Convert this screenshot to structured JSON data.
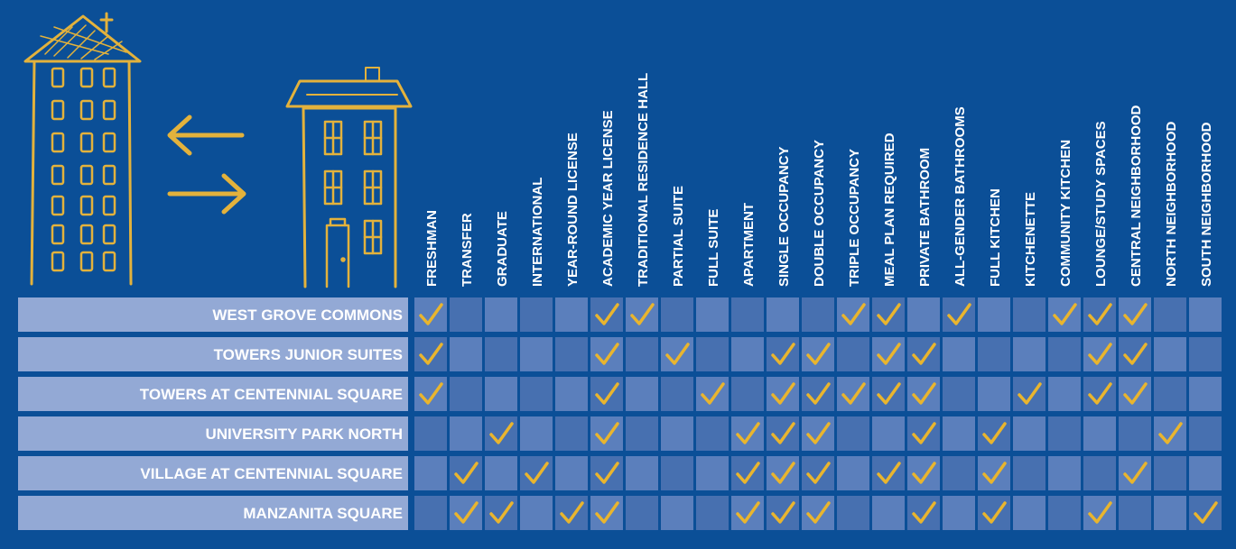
{
  "table": {
    "columns": [
      "FRESHMAN",
      "TRANSFER",
      "GRADUATE",
      "INTERNATIONAL",
      "YEAR-ROUND LICENSE",
      "ACADEMIC YEAR LICENSE",
      "TRADITIONAL RESIDENCE HALL",
      "PARTIAL SUITE",
      "FULL SUITE",
      "APARTMENT",
      "SINGLE OCCUPANCY",
      "DOUBLE OCCUPANCY",
      "TRIPLE OCCUPANCY",
      "MEAL PLAN REQUIRED",
      "PRIVATE BATHROOM",
      "ALL-GENDER BATHROOMS",
      "FULL KITCHEN",
      "KITCHENETTE",
      "COMMUNITY KITCHEN",
      "LOUNGE/STUDY SPACES",
      "CENTRAL NEIGHBORHOOD",
      "NORTH NEIGHBORHOOD",
      "SOUTH NEIGHBORHOOD"
    ],
    "rows": [
      {
        "name": "WEST GROVE COMMONS",
        "checks": [
          true,
          false,
          false,
          false,
          false,
          true,
          true,
          false,
          false,
          false,
          false,
          false,
          true,
          true,
          false,
          true,
          false,
          false,
          true,
          true,
          true,
          false,
          false
        ]
      },
      {
        "name": "TOWERS JUNIOR SUITES",
        "checks": [
          true,
          false,
          false,
          false,
          false,
          true,
          false,
          true,
          false,
          false,
          true,
          true,
          false,
          true,
          true,
          false,
          false,
          false,
          false,
          true,
          true,
          false,
          false
        ]
      },
      {
        "name": "TOWERS AT CENTENNIAL SQUARE",
        "checks": [
          true,
          false,
          false,
          false,
          false,
          true,
          false,
          false,
          true,
          false,
          true,
          true,
          true,
          true,
          true,
          false,
          false,
          true,
          false,
          true,
          true,
          false,
          false
        ]
      },
      {
        "name": "UNIVERSITY PARK NORTH",
        "checks": [
          false,
          false,
          true,
          false,
          false,
          true,
          false,
          false,
          false,
          true,
          true,
          true,
          false,
          false,
          true,
          false,
          true,
          false,
          false,
          false,
          false,
          true,
          false
        ]
      },
      {
        "name": "VILLAGE AT CENTENNIAL SQUARE",
        "checks": [
          false,
          true,
          false,
          true,
          false,
          true,
          false,
          false,
          false,
          true,
          true,
          true,
          false,
          true,
          true,
          false,
          true,
          false,
          false,
          false,
          true,
          false,
          false
        ]
      },
      {
        "name": "MANZANITA SQUARE",
        "checks": [
          false,
          true,
          true,
          false,
          true,
          true,
          false,
          false,
          false,
          true,
          true,
          true,
          false,
          false,
          true,
          false,
          true,
          false,
          false,
          true,
          false,
          false,
          true
        ]
      }
    ]
  }
}
